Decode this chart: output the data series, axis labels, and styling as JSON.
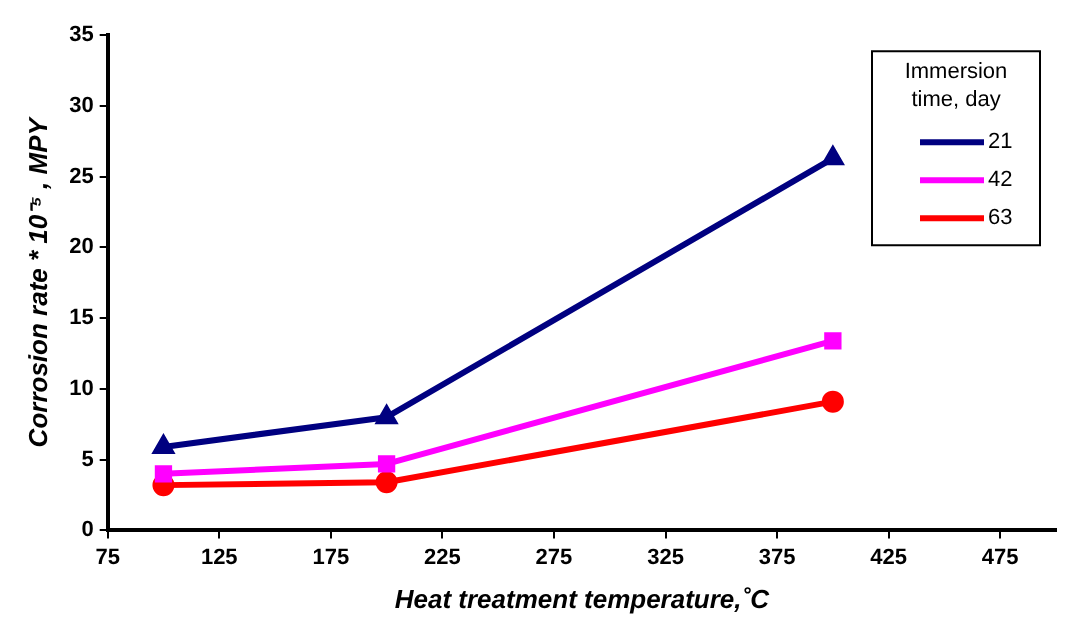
{
  "chart_data": {
    "type": "line",
    "xlabel": "Heat treatment temperature,˚C",
    "ylabel": "Corrosion rate * 10⁻⁵ , MPY",
    "legend_title": "Immersion time, day",
    "x": [
      100,
      200,
      400
    ],
    "series": [
      {
        "name": "21",
        "color": "#000080",
        "values": [
          5.9,
          8.0,
          26.3
        ],
        "marker": "triangle"
      },
      {
        "name": "42",
        "color": "#ff00ff",
        "values": [
          4.0,
          4.7,
          13.4
        ],
        "marker": "square"
      },
      {
        "name": "63",
        "color": "#ff0000",
        "values": [
          3.2,
          3.4,
          9.1
        ],
        "marker": "circle"
      }
    ],
    "xlim": [
      75,
      500
    ],
    "xticks": [
      75,
      125,
      175,
      225,
      275,
      325,
      375,
      425,
      475
    ],
    "ylim": [
      0,
      35
    ],
    "yticks": [
      0,
      5,
      10,
      15,
      20,
      25,
      30,
      35
    ],
    "grid": false,
    "legend": "top right",
    "line_style": "solid"
  }
}
